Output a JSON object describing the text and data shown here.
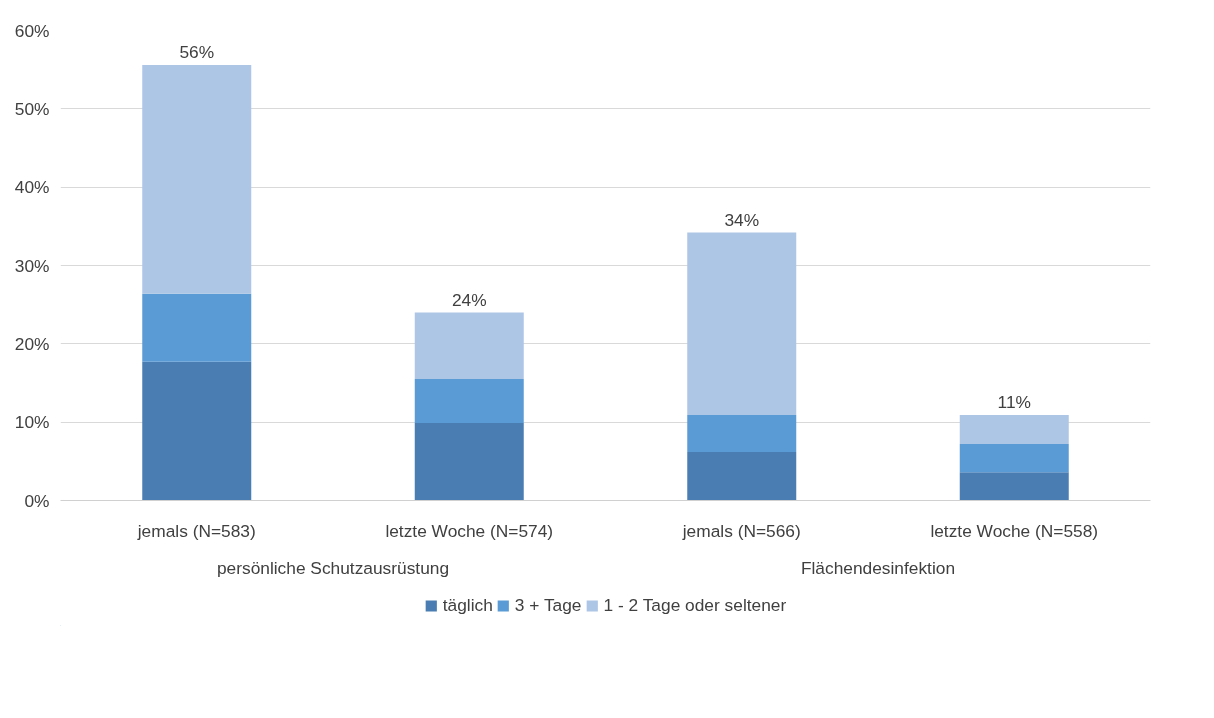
{
  "chart_data": {
    "type": "bar",
    "stacked": true,
    "categories": [
      "jemals (N=583)",
      "letzte Woche (N=574)",
      "jemals (N=566)",
      "letzte Woche (N=558)"
    ],
    "annotations": [
      "persönliche Schutzausrüstung",
      "Flächendesinfektion"
    ],
    "series": [
      {
        "name": "täglich",
        "color": "#4a7eb2",
        "values": [
          17.7,
          9.9,
          6.2,
          3.6
        ]
      },
      {
        "name": "3 + Tage",
        "color": "#5b9bd5",
        "values": [
          8.7,
          5.6,
          4.7,
          3.6
        ]
      },
      {
        "name": "1 - 2 Tage oder seltener",
        "color": "#adc6e5",
        "values": [
          29.2,
          8.5,
          23.3,
          3.7
        ]
      }
    ],
    "totals": [
      "56%",
      "24%",
      "34%",
      "11%"
    ],
    "ylim": [
      0,
      60
    ],
    "yticks": [
      {
        "value": 0,
        "label": "0%"
      },
      {
        "value": 10,
        "label": "10%"
      },
      {
        "value": 20,
        "label": "20%"
      },
      {
        "value": 30,
        "label": "30%"
      },
      {
        "value": 40,
        "label": "40%"
      },
      {
        "value": 50,
        "label": "50%"
      },
      {
        "value": 60,
        "label": "60%"
      }
    ],
    "grid": "y",
    "legend": "bottom"
  }
}
